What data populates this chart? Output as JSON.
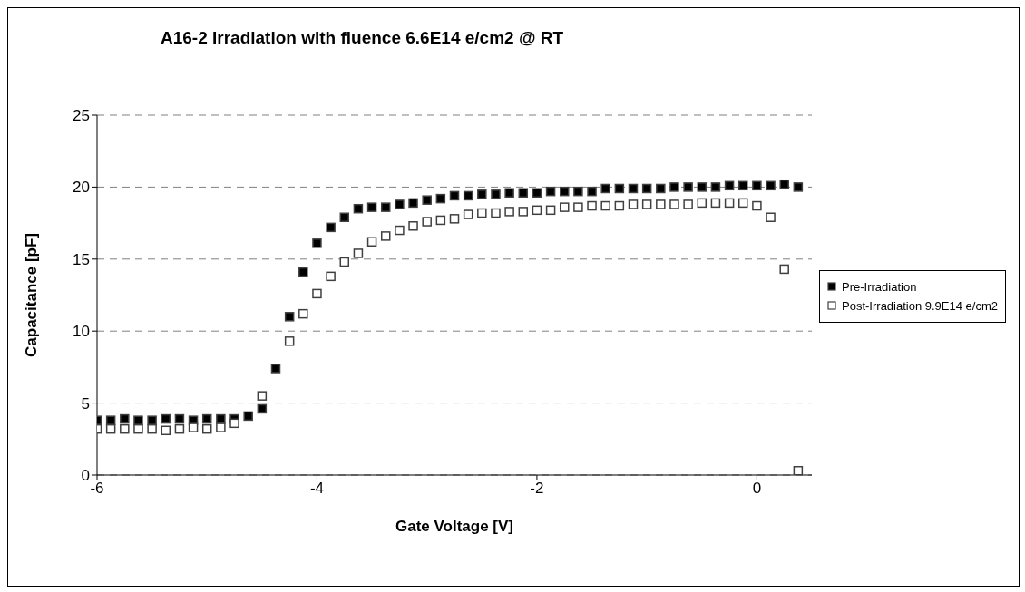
{
  "chart_data": {
    "type": "scatter",
    "title": "A16-2 Irradiation with fluence 6.6E14 e/cm2 @ RT",
    "xlabel": "Gate Voltage [V]",
    "ylabel": "Capacitance [pF]",
    "x": [
      -6,
      -5.875,
      -5.75,
      -5.625,
      -5.5,
      -5.375,
      -5.25,
      -5.125,
      -5,
      -4.875,
      -4.75,
      -4.625,
      -4.5,
      -4.375,
      -4.25,
      -4.125,
      -4,
      -3.875,
      -3.75,
      -3.625,
      -3.5,
      -3.375,
      -3.25,
      -3.125,
      -3,
      -2.875,
      -2.75,
      -2.625,
      -2.5,
      -2.375,
      -2.25,
      -2.125,
      -2,
      -1.875,
      -1.75,
      -1.625,
      -1.5,
      -1.375,
      -1.25,
      -1.125,
      -1,
      -0.875,
      -0.75,
      -0.625,
      -0.5,
      -0.375,
      -0.25,
      -0.125,
      0,
      0.125,
      0.25,
      0.375
    ],
    "series": [
      {
        "name": "Pre-Irradiation",
        "color": "#000000",
        "values": [
          3.8,
          3.8,
          3.9,
          3.8,
          3.8,
          3.9,
          3.9,
          3.8,
          3.9,
          3.9,
          3.9,
          4.1,
          4.6,
          7.4,
          11.0,
          14.1,
          16.1,
          17.2,
          17.9,
          18.5,
          18.6,
          18.6,
          18.8,
          18.9,
          19.1,
          19.2,
          19.4,
          19.4,
          19.5,
          19.5,
          19.6,
          19.6,
          19.6,
          19.7,
          19.7,
          19.7,
          19.7,
          19.9,
          19.9,
          19.9,
          19.9,
          19.9,
          20.0,
          20.0,
          20.0,
          20.0,
          20.1,
          20.1,
          20.1,
          20.1,
          20.2,
          20.0
        ]
      },
      {
        "name": "Post-Irradiation 9.9E14 e/cm2",
        "color": "#ffffff",
        "values": [
          3.2,
          3.2,
          3.2,
          3.2,
          3.2,
          3.1,
          3.2,
          3.3,
          3.2,
          3.3,
          3.6,
          null,
          5.5,
          null,
          9.3,
          11.2,
          12.6,
          13.8,
          14.8,
          15.4,
          16.2,
          16.6,
          17.0,
          17.3,
          17.6,
          17.7,
          17.8,
          18.1,
          18.2,
          18.2,
          18.3,
          18.3,
          18.4,
          18.4,
          18.6,
          18.6,
          18.7,
          18.7,
          18.7,
          18.8,
          18.8,
          18.8,
          18.8,
          18.8,
          18.9,
          18.9,
          18.9,
          18.9,
          18.7,
          17.9,
          14.3,
          0.3
        ]
      }
    ],
    "xlim": [
      -6,
      0.5
    ],
    "xticks": [
      -6,
      -4,
      -2,
      0
    ],
    "ylim": [
      0,
      25
    ],
    "yticks": [
      0,
      5,
      10,
      15,
      20,
      25
    ],
    "grid": "y",
    "legend": "right",
    "marker": "square"
  }
}
